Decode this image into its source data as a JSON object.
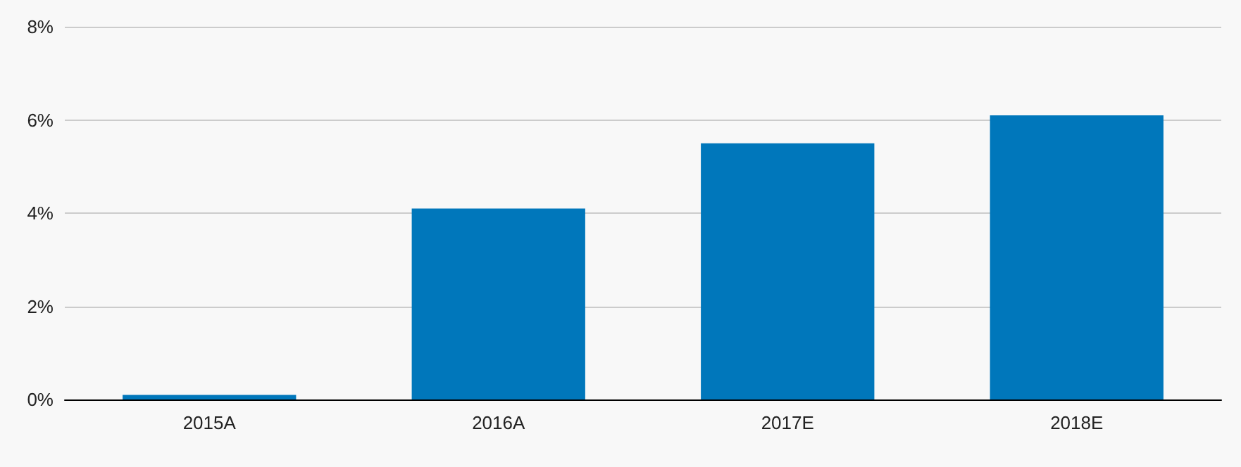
{
  "chart_data": {
    "type": "bar",
    "categories": [
      "2015A",
      "2016A",
      "2017E",
      "2018E"
    ],
    "values": [
      0.1,
      4.1,
      5.5,
      6.1
    ],
    "color": "#0077bb",
    "ylim": [
      0,
      8
    ],
    "yticks": [
      {
        "value": 0,
        "label": "0%"
      },
      {
        "value": 2,
        "label": "2%"
      },
      {
        "value": 4,
        "label": "4%"
      },
      {
        "value": 6,
        "label": "6%"
      },
      {
        "value": 8,
        "label": "8%"
      }
    ],
    "grid": "y"
  }
}
